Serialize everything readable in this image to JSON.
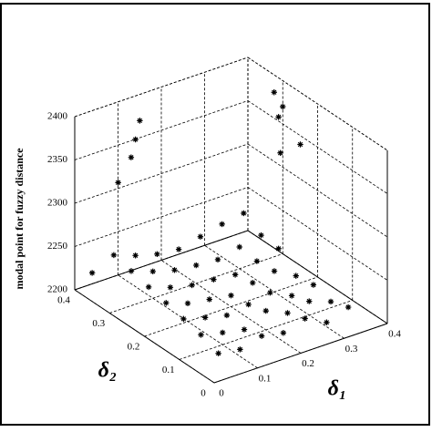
{
  "chart_data": {
    "type": "scatter3d",
    "zlabel": "modal point for fuzzy distance",
    "xlabel": "δ₁",
    "ylabel": "δ₂",
    "color": "#000000",
    "grid": true,
    "xlim": [
      0,
      0.4
    ],
    "xticks": [
      0,
      0.1,
      0.2,
      0.3,
      0.4
    ],
    "ylim": [
      0,
      0.4
    ],
    "yticks": [
      0,
      0.1,
      0.2,
      0.3,
      0.4
    ],
    "zlim": [
      2200,
      2400
    ],
    "zticks": [
      2200,
      2250,
      2300,
      2350,
      2400
    ],
    "x": [
      0.05,
      0.1,
      0.15,
      0.2,
      0.25,
      0.3,
      0.35,
      0.05,
      0.1,
      0.15,
      0.2,
      0.25,
      0.3,
      0.35,
      0.05,
      0.1,
      0.15,
      0.2,
      0.25,
      0.3,
      0.35,
      0.05,
      0.1,
      0.15,
      0.2,
      0.25,
      0.3,
      0.35,
      0.05,
      0.1,
      0.15,
      0.2,
      0.25,
      0.3,
      0.35,
      0.05,
      0.1,
      0.15,
      0.2,
      0.25,
      0.3,
      0.35,
      0.05,
      0.1,
      0.15,
      0.2,
      0.25,
      0.3,
      0.35,
      0,
      0.06,
      0.09,
      0.1,
      0.11,
      0.35,
      0.38,
      0.4,
      0.36,
      0.33
    ],
    "y": [
      0.05,
      0.05,
      0.05,
      0.05,
      0.05,
      0.05,
      0.05,
      0.1,
      0.1,
      0.1,
      0.1,
      0.1,
      0.1,
      0.1,
      0.15,
      0.15,
      0.15,
      0.15,
      0.15,
      0.15,
      0.15,
      0.2,
      0.2,
      0.2,
      0.2,
      0.2,
      0.2,
      0.2,
      0.25,
      0.25,
      0.25,
      0.25,
      0.25,
      0.25,
      0.25,
      0.3,
      0.3,
      0.3,
      0.3,
      0.3,
      0.3,
      0.3,
      0.35,
      0.35,
      0.35,
      0.35,
      0.35,
      0.35,
      0.35,
      0.35,
      0.35,
      0.35,
      0.35,
      0.35,
      0.25,
      0.3,
      0.3,
      0.2,
      0.22
    ],
    "z": [
      2212,
      2208,
      2215,
      2210,
      2218,
      2205,
      2214,
      2220,
      2214,
      2209,
      2222,
      2211,
      2216,
      2207,
      2225,
      2218,
      2212,
      2216,
      2221,
      2209,
      2213,
      2230,
      2221,
      2217,
      2213,
      2219,
      2224,
      2210,
      2235,
      2226,
      2220,
      2218,
      2215,
      2222,
      2228,
      2240,
      2231,
      2224,
      2221,
      2219,
      2225,
      2230,
      2245,
      2236,
      2229,
      2226,
      2232,
      2238,
      2242,
      2233,
      2327,
      2351,
      2370,
      2390,
      2380,
      2390,
      2370,
      2360,
      2350
    ]
  }
}
